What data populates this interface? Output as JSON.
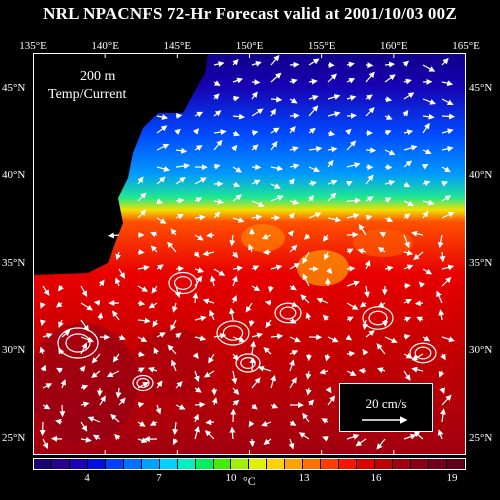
{
  "title": "NRL NPACNFS 72-Hr Forecast valid at 2001/10/03 00Z",
  "depth_label": "200 m",
  "field_label": "Temp/Current",
  "lon_ticks": [
    "135°E",
    "140°E",
    "145°E",
    "150°E",
    "155°E",
    "160°E",
    "165°E"
  ],
  "lat_ticks": [
    "45°N",
    "40°N",
    "35°N",
    "30°N",
    "25°N"
  ],
  "scale_label": "20 cm/s",
  "colorbar": {
    "ticks": [
      "4",
      "7",
      "10",
      "13",
      "16",
      "19"
    ],
    "unit": "°C",
    "colors": [
      "#1a0070",
      "#2a008f",
      "#1c00b8",
      "#0010e0",
      "#0040ff",
      "#0070ff",
      "#00a0ff",
      "#00d0ff",
      "#00f0c0",
      "#00f060",
      "#40f000",
      "#a0f000",
      "#e0f000",
      "#ffd000",
      "#ffa000",
      "#ff7000",
      "#ff3c00",
      "#ff1000",
      "#e00000",
      "#c00000",
      "#a00010",
      "#880018",
      "#700018",
      "#600018"
    ]
  },
  "map": {
    "lon_range": [
      135,
      165
    ],
    "lat_range": [
      24,
      47
    ],
    "land_color": "#000000",
    "current_arrow_color": "#ffffff"
  }
}
